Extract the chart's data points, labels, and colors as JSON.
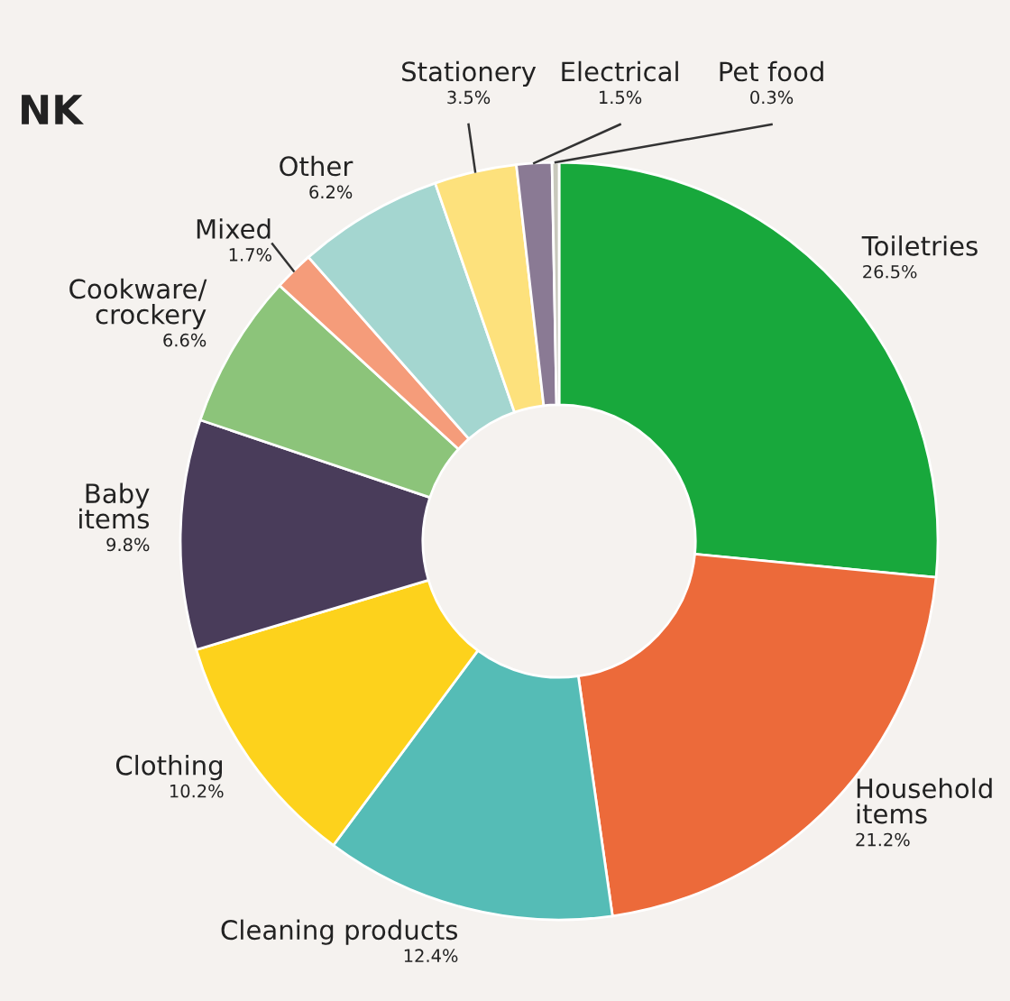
{
  "chart_data": {
    "type": "donut",
    "title": "NK",
    "categories": [
      "Toiletries",
      "Household\nitems",
      "Cleaning products",
      "Clothing",
      "Baby\nitems",
      "Cookware/\ncrockery",
      "Mixed",
      "Other",
      "Stationery",
      "Electrical",
      "Pet food"
    ],
    "values": [
      26.5,
      21.2,
      12.4,
      10.2,
      9.8,
      6.6,
      1.7,
      6.2,
      3.5,
      1.5,
      0.3
    ],
    "value_labels": [
      "26.5%",
      "21.2%",
      "12.4%",
      "10.2%",
      "9.8%",
      "6.6%",
      "1.7%",
      "6.2%",
      "3.5%",
      "1.5%",
      "0.3%"
    ],
    "colors": [
      "#18a83c",
      "#ec6a3a",
      "#55bcb6",
      "#fdd21c",
      "#493c5a",
      "#8cc47a",
      "#f59c7a",
      "#a4d6d0",
      "#fde17c",
      "#8a7a94",
      "#c8c8bc"
    ],
    "legend": false
  }
}
